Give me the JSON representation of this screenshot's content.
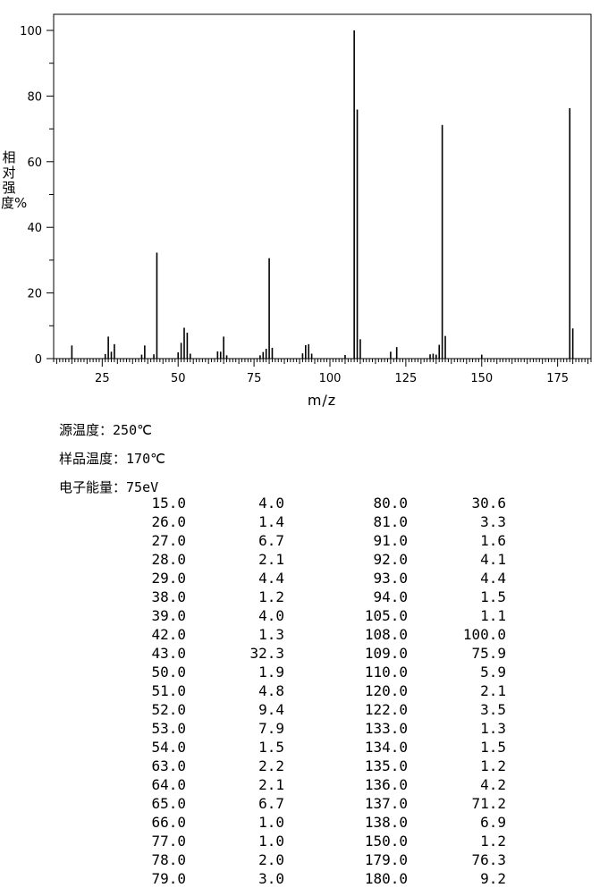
{
  "chart_data": {
    "type": "bar",
    "title": "",
    "xlabel": "m/z",
    "ylabel": "相对强度%",
    "xlim": [
      9,
      186
    ],
    "ylim": [
      0,
      100
    ],
    "x_ticks": [
      25,
      50,
      75,
      100,
      125,
      150,
      175
    ],
    "y_ticks": [
      0,
      20,
      40,
      60,
      80,
      100
    ],
    "grid": false,
    "peaks": [
      {
        "mz": 15.0,
        "intensity": 4.0
      },
      {
        "mz": 26.0,
        "intensity": 1.4
      },
      {
        "mz": 27.0,
        "intensity": 6.7
      },
      {
        "mz": 28.0,
        "intensity": 2.1
      },
      {
        "mz": 29.0,
        "intensity": 4.4
      },
      {
        "mz": 38.0,
        "intensity": 1.2
      },
      {
        "mz": 39.0,
        "intensity": 4.0
      },
      {
        "mz": 42.0,
        "intensity": 1.3
      },
      {
        "mz": 43.0,
        "intensity": 32.3
      },
      {
        "mz": 50.0,
        "intensity": 1.9
      },
      {
        "mz": 51.0,
        "intensity": 4.8
      },
      {
        "mz": 52.0,
        "intensity": 9.4
      },
      {
        "mz": 53.0,
        "intensity": 7.9
      },
      {
        "mz": 54.0,
        "intensity": 1.5
      },
      {
        "mz": 63.0,
        "intensity": 2.2
      },
      {
        "mz": 64.0,
        "intensity": 2.1
      },
      {
        "mz": 65.0,
        "intensity": 6.7
      },
      {
        "mz": 66.0,
        "intensity": 1.0
      },
      {
        "mz": 77.0,
        "intensity": 1.0
      },
      {
        "mz": 78.0,
        "intensity": 2.0
      },
      {
        "mz": 79.0,
        "intensity": 3.0
      },
      {
        "mz": 80.0,
        "intensity": 30.6
      },
      {
        "mz": 81.0,
        "intensity": 3.3
      },
      {
        "mz": 91.0,
        "intensity": 1.6
      },
      {
        "mz": 92.0,
        "intensity": 4.1
      },
      {
        "mz": 93.0,
        "intensity": 4.4
      },
      {
        "mz": 94.0,
        "intensity": 1.5
      },
      {
        "mz": 105.0,
        "intensity": 1.1
      },
      {
        "mz": 108.0,
        "intensity": 100.0
      },
      {
        "mz": 109.0,
        "intensity": 75.9
      },
      {
        "mz": 110.0,
        "intensity": 5.9
      },
      {
        "mz": 120.0,
        "intensity": 2.1
      },
      {
        "mz": 122.0,
        "intensity": 3.5
      },
      {
        "mz": 133.0,
        "intensity": 1.3
      },
      {
        "mz": 134.0,
        "intensity": 1.5
      },
      {
        "mz": 135.0,
        "intensity": 1.2
      },
      {
        "mz": 136.0,
        "intensity": 4.2
      },
      {
        "mz": 137.0,
        "intensity": 71.2
      },
      {
        "mz": 138.0,
        "intensity": 6.9
      },
      {
        "mz": 150.0,
        "intensity": 1.2
      },
      {
        "mz": 179.0,
        "intensity": 76.3
      },
      {
        "mz": 180.0,
        "intensity": 9.2
      }
    ]
  },
  "conditions": {
    "source_temp_label": "源温度：",
    "source_temp_value": "250℃",
    "sample_temp_label": "样品温度：",
    "sample_temp_value": "170℃",
    "electron_energy_label": "电子能量：",
    "electron_energy_value": "75eV"
  },
  "table": {
    "rows": [
      [
        "15.0",
        "4.0",
        "80.0",
        "30.6"
      ],
      [
        "26.0",
        "1.4",
        "81.0",
        "3.3"
      ],
      [
        "27.0",
        "6.7",
        "91.0",
        "1.6"
      ],
      [
        "28.0",
        "2.1",
        "92.0",
        "4.1"
      ],
      [
        "29.0",
        "4.4",
        "93.0",
        "4.4"
      ],
      [
        "38.0",
        "1.2",
        "94.0",
        "1.5"
      ],
      [
        "39.0",
        "4.0",
        "105.0",
        "1.1"
      ],
      [
        "42.0",
        "1.3",
        "108.0",
        "100.0"
      ],
      [
        "43.0",
        "32.3",
        "109.0",
        "75.9"
      ],
      [
        "50.0",
        "1.9",
        "110.0",
        "5.9"
      ],
      [
        "51.0",
        "4.8",
        "120.0",
        "2.1"
      ],
      [
        "52.0",
        "9.4",
        "122.0",
        "3.5"
      ],
      [
        "53.0",
        "7.9",
        "133.0",
        "1.3"
      ],
      [
        "54.0",
        "1.5",
        "134.0",
        "1.5"
      ],
      [
        "63.0",
        "2.2",
        "135.0",
        "1.2"
      ],
      [
        "64.0",
        "2.1",
        "136.0",
        "4.2"
      ],
      [
        "65.0",
        "6.7",
        "137.0",
        "71.2"
      ],
      [
        "66.0",
        "1.0",
        "138.0",
        "6.9"
      ],
      [
        "77.0",
        "1.0",
        "150.0",
        "1.2"
      ],
      [
        "78.0",
        "2.0",
        "179.0",
        "76.3"
      ],
      [
        "79.0",
        "3.0",
        "180.0",
        "9.2"
      ]
    ]
  }
}
